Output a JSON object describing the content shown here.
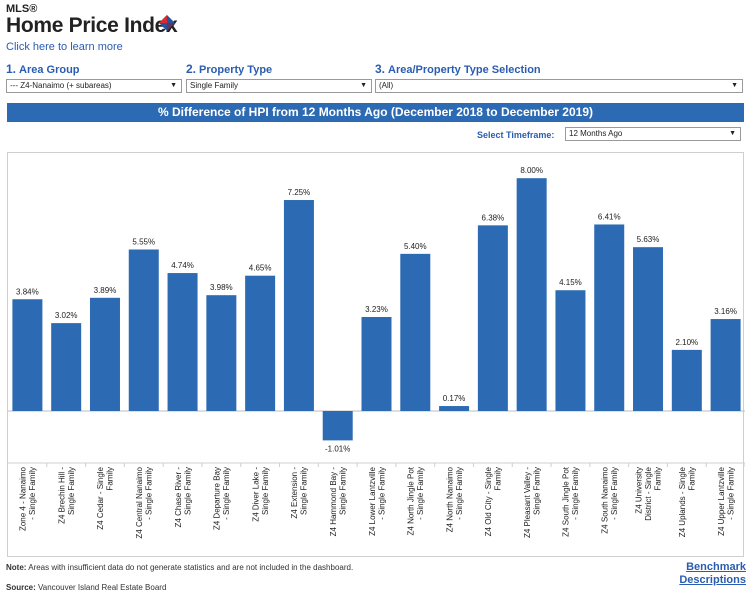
{
  "header": {
    "mls": "MLS®",
    "title": "Home Price Index",
    "learn_more": "Click here to learn more"
  },
  "filters": {
    "area_group": {
      "number": "1.",
      "label": "Area Group",
      "value": "--- Z4-Nanaimo (+ subareas)"
    },
    "property_type": {
      "number": "2.",
      "label": "Property Type",
      "value": "Single Family"
    },
    "selection": {
      "number": "3.",
      "label": "Area/Property Type Selection",
      "value": "(All)"
    }
  },
  "banner": "% Difference of HPI from 12 Months Ago (December 2018 to December 2019)",
  "timeframe": {
    "label": "Select Timeframe:",
    "value": "12 Months Ago"
  },
  "colors": {
    "bar": "#2c6bb3",
    "accent": "#2a5db0",
    "logo_red": "#d32f2f",
    "logo_blue": "#2c4f9e"
  },
  "chart_data": {
    "type": "bar",
    "title": "% Difference of HPI from 12 Months Ago (December 2018 to December 2019)",
    "ylim": [
      -1.5,
      8.6
    ],
    "grid": false,
    "categories": [
      [
        "Zone 4 - Nanaimo",
        "- Single Family"
      ],
      [
        "Z4 Brechin Hill -",
        "Single Family"
      ],
      [
        "Z4 Cedar - Single",
        "Family"
      ],
      [
        "Z4 Central Nanaimo",
        "- Single Family"
      ],
      [
        "Z4 Chase River -",
        "Single Family"
      ],
      [
        "Z4 Departure Bay",
        "- Single Family"
      ],
      [
        "Z4 Diver Lake -",
        "Single Family"
      ],
      [
        "Z4 Extension -",
        "Single Family"
      ],
      [
        "Z4 Hammond Bay -",
        "Single Family"
      ],
      [
        "Z4 Lower Lantzville",
        "- Single Family"
      ],
      [
        "Z4 North Jingle Pot",
        "- Single Family"
      ],
      [
        "Z4 North Nanaimo",
        "- Single Family"
      ],
      [
        "Z4 Old City - Single",
        "Family"
      ],
      [
        "Z4 Pleasant Valley -",
        "Single Family"
      ],
      [
        "Z4 South Jingle Pot",
        "- Single Family"
      ],
      [
        "Z4 South Nanaimo",
        "- Single Family"
      ],
      [
        "Z4 University",
        "District - Single",
        "Family"
      ],
      [
        "Z4 Uplands - Single",
        "Family"
      ],
      [
        "Z4 Upper Lantzville",
        "- Single Family"
      ]
    ],
    "values": [
      3.84,
      3.02,
      3.89,
      5.55,
      4.74,
      3.98,
      4.65,
      7.25,
      -1.01,
      3.23,
      5.4,
      0.17,
      6.38,
      8.0,
      4.15,
      6.41,
      5.63,
      2.1,
      3.16
    ],
    "data_labels": [
      "3.84%",
      "3.02%",
      "3.89%",
      "5.55%",
      "4.74%",
      "3.98%",
      "4.65%",
      "7.25%",
      "-1.01%",
      "3.23%",
      "5.40%",
      "0.17%",
      "6.38%",
      "8.00%",
      "4.15%",
      "6.41%",
      "5.63%",
      "2.10%",
      "3.16%"
    ]
  },
  "footer": {
    "note_label": "Note:",
    "note_text": "Areas with insufficient data do not generate statistics and are not included in the dashboard.",
    "source_label": "Source:",
    "source_text": "Vancouver Island Real Estate Board",
    "benchmark_link": "Benchmark Descriptions"
  }
}
